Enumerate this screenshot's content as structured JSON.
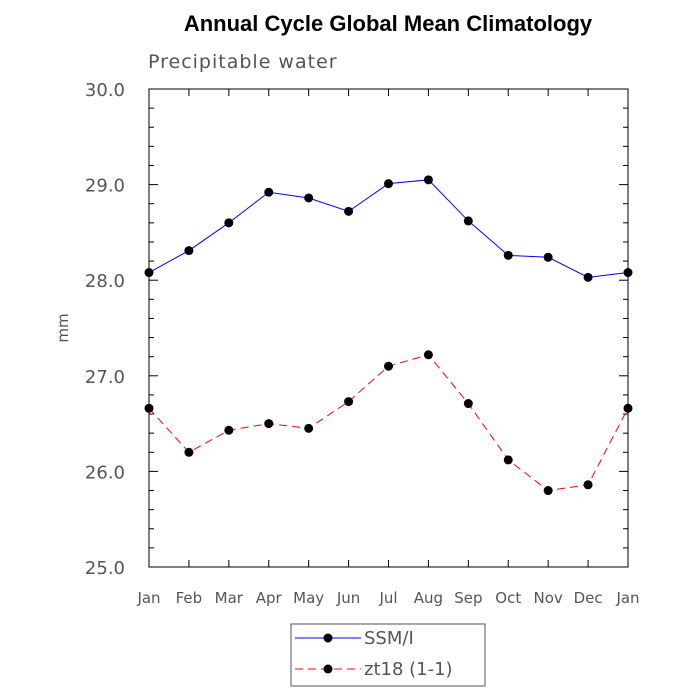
{
  "chart_data": {
    "type": "line",
    "title": "Annual Cycle Global Mean Climatology",
    "subtitle": "Precipitable water",
    "xlabel": "",
    "ylabel": "mm",
    "ylim": [
      25.0,
      30.0
    ],
    "yticks": [
      "25.0",
      "26.0",
      "27.0",
      "28.0",
      "29.0",
      "30.0"
    ],
    "categories": [
      "Jan",
      "Feb",
      "Mar",
      "Apr",
      "May",
      "Jun",
      "Jul",
      "Aug",
      "Sep",
      "Oct",
      "Nov",
      "Dec",
      "Jan"
    ],
    "grid": false,
    "legend_position": "bottom-center",
    "series": [
      {
        "name": "SSM/I",
        "color": "#0000ff",
        "line_style": "solid",
        "marker": "filled-circle",
        "values": [
          28.08,
          28.31,
          28.6,
          28.92,
          28.86,
          28.72,
          29.01,
          29.05,
          28.62,
          28.26,
          28.24,
          28.03,
          28.08
        ]
      },
      {
        "name": "zt18 (1-1)",
        "color": "#ff0000",
        "line_style": "dashed",
        "marker": "filled-circle",
        "values": [
          26.66,
          26.2,
          26.43,
          26.5,
          26.45,
          26.73,
          27.1,
          27.22,
          26.71,
          26.12,
          25.8,
          25.86,
          26.66
        ]
      }
    ]
  }
}
